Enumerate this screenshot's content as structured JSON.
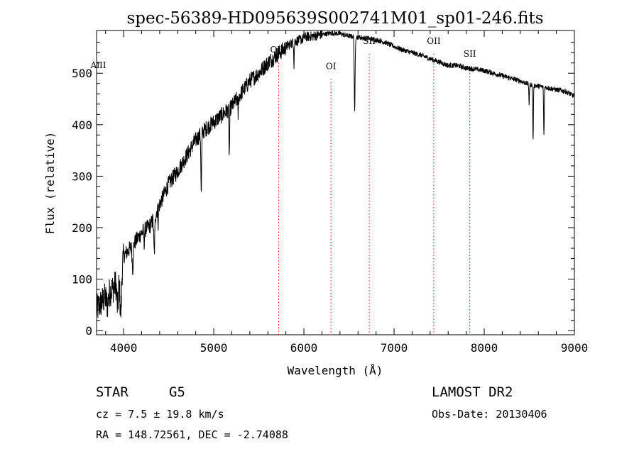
{
  "chart_data": {
    "type": "line",
    "title": "spec-56389-HD095639S002741M01_sp01-246.fits",
    "xlabel": "Wavelength (Å)",
    "ylabel": "Flux (relative)",
    "xlim": [
      3700,
      9000
    ],
    "ylim": [
      -8,
      583
    ],
    "x_ticks": [
      4000,
      5000,
      6000,
      7000,
      8000,
      9000
    ],
    "y_ticks": [
      0,
      100,
      200,
      300,
      400,
      500
    ],
    "grid": false,
    "continuum": [
      [
        3700,
        50
      ],
      [
        3800,
        75
      ],
      [
        3900,
        95
      ],
      [
        4000,
        150
      ],
      [
        4100,
        170
      ],
      [
        4200,
        195
      ],
      [
        4300,
        210
      ],
      [
        4400,
        250
      ],
      [
        4500,
        290
      ],
      [
        4600,
        315
      ],
      [
        4700,
        345
      ],
      [
        4800,
        375
      ],
      [
        4900,
        395
      ],
      [
        5000,
        410
      ],
      [
        5100,
        425
      ],
      [
        5200,
        440
      ],
      [
        5300,
        465
      ],
      [
        5400,
        490
      ],
      [
        5500,
        505
      ],
      [
        5600,
        525
      ],
      [
        5700,
        540
      ],
      [
        5800,
        555
      ],
      [
        5900,
        565
      ],
      [
        6000,
        570
      ],
      [
        6100,
        572
      ],
      [
        6200,
        575
      ],
      [
        6300,
        578
      ],
      [
        6400,
        577
      ],
      [
        6500,
        572
      ],
      [
        6600,
        570
      ],
      [
        6700,
        568
      ],
      [
        6800,
        565
      ],
      [
        6900,
        560
      ],
      [
        7000,
        552
      ],
      [
        7100,
        545
      ],
      [
        7200,
        540
      ],
      [
        7300,
        535
      ],
      [
        7400,
        528
      ],
      [
        7500,
        522
      ],
      [
        7600,
        515
      ],
      [
        7700,
        515
      ],
      [
        7800,
        510
      ],
      [
        7900,
        508
      ],
      [
        8000,
        505
      ],
      [
        8100,
        500
      ],
      [
        8200,
        495
      ],
      [
        8300,
        490
      ],
      [
        8400,
        485
      ],
      [
        8500,
        478
      ],
      [
        8600,
        475
      ],
      [
        8700,
        472
      ],
      [
        8800,
        468
      ],
      [
        8900,
        465
      ],
      [
        9000,
        455
      ]
    ],
    "absorption_features": [
      [
        3820,
        20,
        20
      ],
      [
        3934,
        18,
        60
      ],
      [
        3968,
        18,
        90
      ],
      [
        4101,
        12,
        45
      ],
      [
        4227,
        6,
        30
      ],
      [
        4340,
        12,
        70
      ],
      [
        4383,
        5,
        30
      ],
      [
        4861,
        8,
        120
      ],
      [
        5172,
        8,
        90
      ],
      [
        5270,
        6,
        35
      ],
      [
        5890,
        6,
        45
      ],
      [
        6563,
        9,
        150
      ],
      [
        8498,
        6,
        40
      ],
      [
        8542,
        7,
        110
      ],
      [
        8662,
        7,
        95
      ]
    ],
    "lines": [
      {
        "label": "AlII",
        "wavelength": 3720,
        "flux_label": 510,
        "dotted": false
      },
      {
        "label": "OIII",
        "wavelength": 5720,
        "flux_label": 540,
        "dotted": true
      },
      {
        "label": "OI",
        "wavelength": 6300,
        "flux_label": 508,
        "dotted": true
      },
      {
        "label": "SII",
        "wavelength": 6725,
        "flux_label": 557,
        "dotted": true
      },
      {
        "label": "OII",
        "wavelength": 7440,
        "flux_label": 557,
        "dotted": true
      },
      {
        "label": "SII",
        "wavelength": 7840,
        "flux_label": 532,
        "dotted": true
      }
    ],
    "line_color": "#000000",
    "marker_color": "#ff0000"
  },
  "info": {
    "object_class": "STAR",
    "subclass": "G5",
    "redshift": "cz = 7.5 ± 19.8 km/s",
    "coords": "RA = 148.72561, DEC =  -2.74088",
    "survey": "LAMOST DR2",
    "obs_date": "Obs-Date: 20130406"
  }
}
